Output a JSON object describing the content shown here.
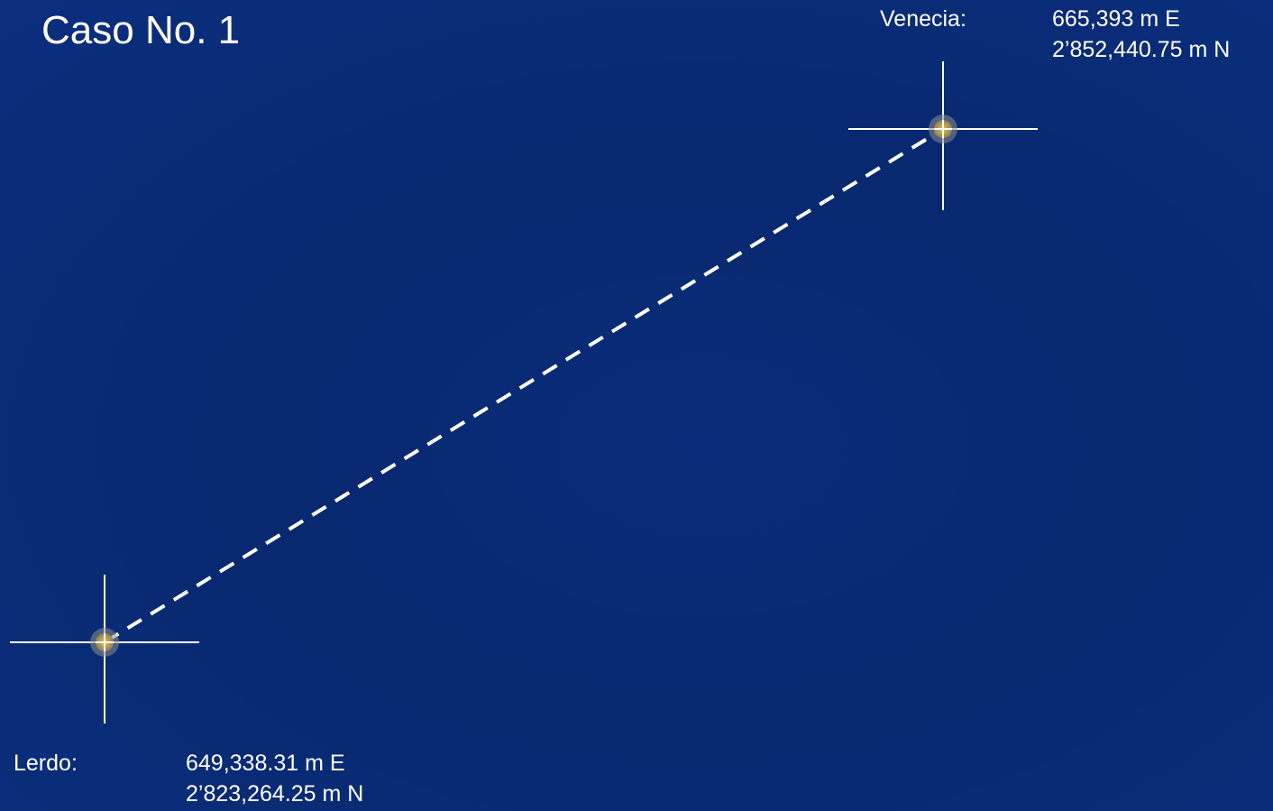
{
  "title": "Caso No. 1",
  "points": {
    "venecia": {
      "name": "Venecia:",
      "easting": "665,393 m E",
      "northing": "2’852,440.75  m N"
    },
    "lerdo": {
      "name": "Lerdo:",
      "easting": "649,338.31  m E",
      "northing": "2’823,264.25 m N"
    }
  },
  "colors": {
    "background": "#0a2c7a",
    "line": "#ffffff",
    "marker_fill": "#b89a4a",
    "marker_halo": "#8a8f8a"
  }
}
